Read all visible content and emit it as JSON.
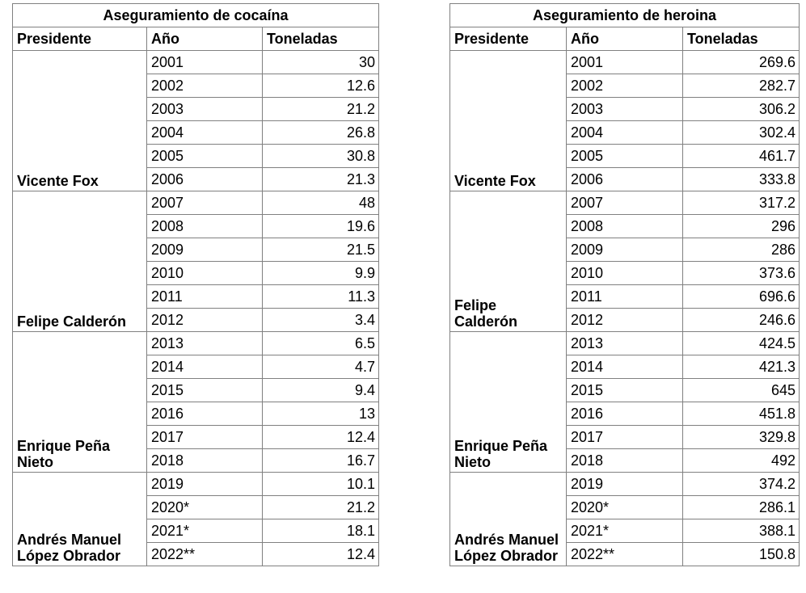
{
  "tables": [
    {
      "title": "Aseguramiento de cocaína",
      "headers": [
        "Presidente",
        "Año",
        "Toneladas"
      ],
      "groups": [
        {
          "president": "Vicente Fox",
          "rows": [
            [
              "2001",
              "30"
            ],
            [
              "2002",
              "12.6"
            ],
            [
              "2003",
              "21.2"
            ],
            [
              "2004",
              "26.8"
            ],
            [
              "2005",
              "30.8"
            ],
            [
              "2006",
              "21.3"
            ]
          ]
        },
        {
          "president": "Felipe Calderón",
          "rows": [
            [
              "2007",
              "48"
            ],
            [
              "2008",
              "19.6"
            ],
            [
              "2009",
              "21.5"
            ],
            [
              "2010",
              "9.9"
            ],
            [
              "2011",
              "11.3"
            ],
            [
              "2012",
              "3.4"
            ]
          ]
        },
        {
          "president": "Enrique Peña Nieto",
          "rows": [
            [
              "2013",
              "6.5"
            ],
            [
              "2014",
              "4.7"
            ],
            [
              "2015",
              "9.4"
            ],
            [
              "2016",
              "13"
            ],
            [
              "2017",
              "12.4"
            ],
            [
              "2018",
              "16.7"
            ]
          ]
        },
        {
          "president": "Andrés Manuel López Obrador",
          "rows": [
            [
              "2019",
              "10.1"
            ],
            [
              "2020*",
              "21.2"
            ],
            [
              "2021*",
              "18.1"
            ],
            [
              "2022**",
              "12.4"
            ]
          ]
        }
      ]
    },
    {
      "title": "Aseguramiento de heroina",
      "headers": [
        "Presidente",
        "Año",
        "Toneladas"
      ],
      "groups": [
        {
          "president": "Vicente Fox",
          "rows": [
            [
              "2001",
              "269.6"
            ],
            [
              "2002",
              "282.7"
            ],
            [
              "2003",
              "306.2"
            ],
            [
              "2004",
              "302.4"
            ],
            [
              "2005",
              "461.7"
            ],
            [
              "2006",
              "333.8"
            ]
          ]
        },
        {
          "president": "Felipe Calderón",
          "rows": [
            [
              "2007",
              "317.2"
            ],
            [
              "2008",
              "296"
            ],
            [
              "2009",
              "286"
            ],
            [
              "2010",
              "373.6"
            ],
            [
              "2011",
              "696.6"
            ],
            [
              "2012",
              "246.6"
            ]
          ]
        },
        {
          "president": "Enrique Peña Nieto",
          "rows": [
            [
              "2013",
              "424.5"
            ],
            [
              "2014",
              "421.3"
            ],
            [
              "2015",
              "645"
            ],
            [
              "2016",
              "451.8"
            ],
            [
              "2017",
              "329.8"
            ],
            [
              "2018",
              "492"
            ]
          ]
        },
        {
          "president": "Andrés Manuel López Obrador",
          "rows": [
            [
              "2019",
              "374.2"
            ],
            [
              "2020*",
              "286.1"
            ],
            [
              "2021*",
              "388.1"
            ],
            [
              "2022**",
              "150.8"
            ]
          ]
        }
      ]
    }
  ]
}
